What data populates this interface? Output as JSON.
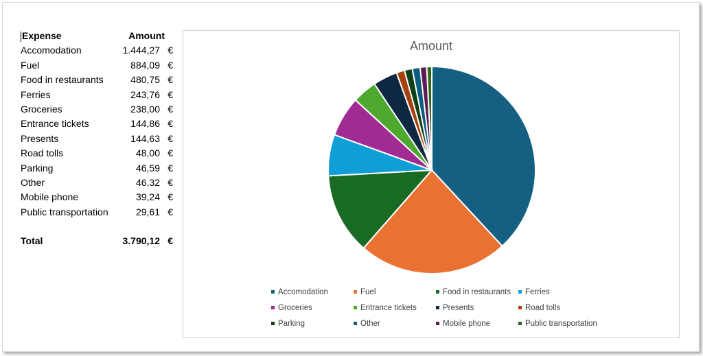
{
  "table": {
    "header": {
      "expense": "Expense",
      "amount": "Amount"
    },
    "rows": [
      {
        "expense": "Accomodation",
        "amount": "1.444,27",
        "currency": "€"
      },
      {
        "expense": "Fuel",
        "amount": "884,09",
        "currency": "€"
      },
      {
        "expense": "Food in restaurants",
        "amount": "480,75",
        "currency": "€"
      },
      {
        "expense": "Ferries",
        "amount": "243,76",
        "currency": "€"
      },
      {
        "expense": "Groceries",
        "amount": "238,00",
        "currency": "€"
      },
      {
        "expense": "Entrance tickets",
        "amount": "144,86",
        "currency": "€"
      },
      {
        "expense": "Presents",
        "amount": "144,63",
        "currency": "€"
      },
      {
        "expense": "Road tolls",
        "amount": "48,00",
        "currency": "€"
      },
      {
        "expense": "Parking",
        "amount": "46,59",
        "currency": "€"
      },
      {
        "expense": "Other",
        "amount": "46,32",
        "currency": "€"
      },
      {
        "expense": "Mobile phone",
        "amount": "39,24",
        "currency": "€"
      },
      {
        "expense": "Public transportation",
        "amount": "29,61",
        "currency": "€"
      }
    ],
    "total": {
      "label": "Total",
      "amount": "3.790,12",
      "currency": "€"
    }
  },
  "chart_data": {
    "type": "pie",
    "title": "Amount",
    "categories": [
      "Accomodation",
      "Fuel",
      "Food in restaurants",
      "Ferries",
      "Groceries",
      "Entrance tickets",
      "Presents",
      "Road tolls",
      "Parking",
      "Other",
      "Mobile phone",
      "Public transportation"
    ],
    "values": [
      1444.27,
      884.09,
      480.75,
      243.76,
      238.0,
      144.86,
      144.63,
      48.0,
      46.59,
      46.32,
      39.24,
      29.61
    ],
    "colors": [
      "#156082",
      "#E97132",
      "#196B24",
      "#0F9ED5",
      "#A02B93",
      "#4EA72E",
      "#0E2841",
      "#A6400F",
      "#0F4018",
      "#0B5E80",
      "#5E1A56",
      "#2E6A1A"
    ],
    "legend_position": "bottom"
  }
}
